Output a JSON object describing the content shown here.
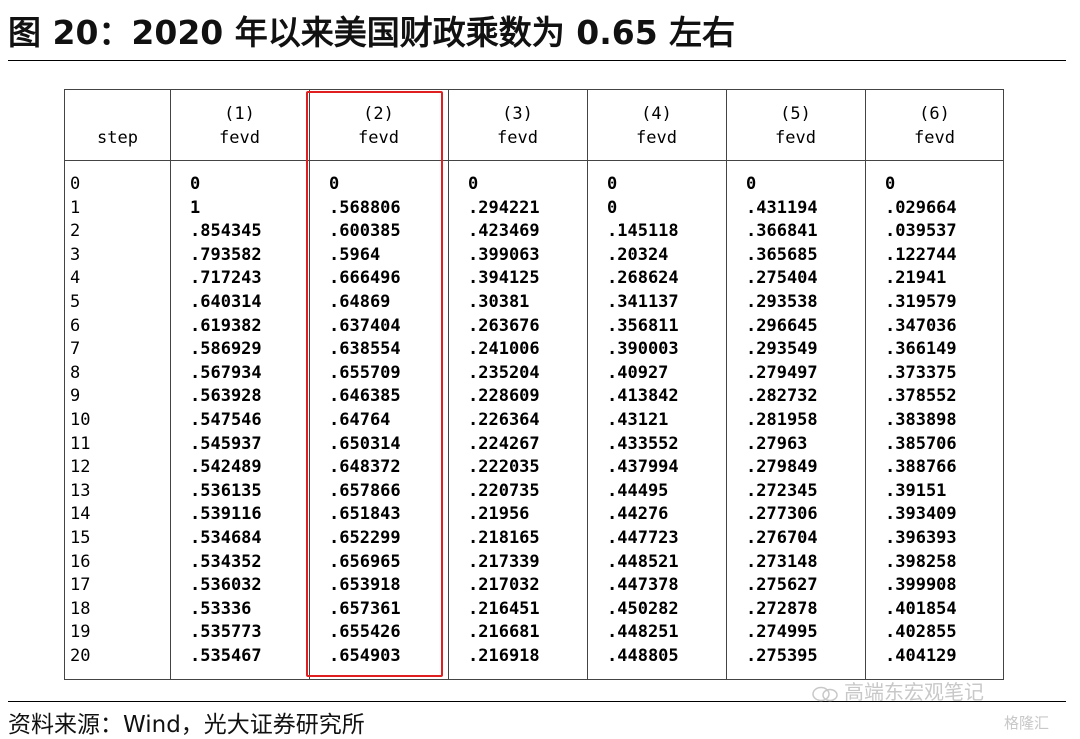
{
  "title": "图 20：2020 年以来美国财政乘数为 0.65 左右",
  "source": "资料来源：Wind，光大证券研究所",
  "watermark": "高端东宏观笔记",
  "watermark2": "格隆汇",
  "colors": {
    "highlight": "#e02020",
    "border": "#444444"
  },
  "table": {
    "step_header": "step",
    "columns": [
      {
        "index": "(1)",
        "name": "fevd",
        "values": [
          "0",
          "1",
          ".854345",
          ".793582",
          ".717243",
          ".640314",
          ".619382",
          ".586929",
          ".567934",
          ".563928",
          ".547546",
          ".545937",
          ".542489",
          ".536135",
          ".539116",
          ".534684",
          ".534352",
          ".536032",
          ".53336",
          ".535773",
          ".535467"
        ]
      },
      {
        "index": "(2)",
        "name": "fevd",
        "values": [
          "0",
          ".568806",
          ".600385",
          ".5964",
          ".666496",
          ".64869",
          ".637404",
          ".638554",
          ".655709",
          ".646385",
          ".64764",
          ".650314",
          ".648372",
          ".657866",
          ".651843",
          ".652299",
          ".656965",
          ".653918",
          ".657361",
          ".655426",
          ".654903"
        ]
      },
      {
        "index": "(3)",
        "name": "fevd",
        "values": [
          "0",
          ".294221",
          ".423469",
          ".399063",
          ".394125",
          ".30381",
          ".263676",
          ".241006",
          ".235204",
          ".228609",
          ".226364",
          ".224267",
          ".222035",
          ".220735",
          ".21956",
          ".218165",
          ".217339",
          ".217032",
          ".216451",
          ".216681",
          ".216918"
        ]
      },
      {
        "index": "(4)",
        "name": "fevd",
        "values": [
          "0",
          "0",
          ".145118",
          ".20324",
          ".268624",
          ".341137",
          ".356811",
          ".390003",
          ".40927",
          ".413842",
          ".43121",
          ".433552",
          ".437994",
          ".44495",
          ".44276",
          ".447723",
          ".448521",
          ".447378",
          ".450282",
          ".448251",
          ".448805"
        ]
      },
      {
        "index": "(5)",
        "name": "fevd",
        "values": [
          "0",
          ".431194",
          ".366841",
          ".365685",
          ".275404",
          ".293538",
          ".296645",
          ".293549",
          ".279497",
          ".282732",
          ".281958",
          ".27963",
          ".279849",
          ".272345",
          ".277306",
          ".276704",
          ".273148",
          ".275627",
          ".272878",
          ".274995",
          ".275395"
        ]
      },
      {
        "index": "(6)",
        "name": "fevd",
        "values": [
          "0",
          ".029664",
          ".039537",
          ".122744",
          ".21941",
          ".319579",
          ".347036",
          ".366149",
          ".373375",
          ".378552",
          ".383898",
          ".385706",
          ".388766",
          ".39151",
          ".393409",
          ".396393",
          ".398258",
          ".399908",
          ".401854",
          ".402855",
          ".404129"
        ]
      }
    ],
    "steps": [
      "0",
      "1",
      "2",
      "3",
      "4",
      "5",
      "6",
      "7",
      "8",
      "9",
      "10",
      "11",
      "12",
      "13",
      "14",
      "15",
      "16",
      "17",
      "18",
      "19",
      "20"
    ]
  }
}
